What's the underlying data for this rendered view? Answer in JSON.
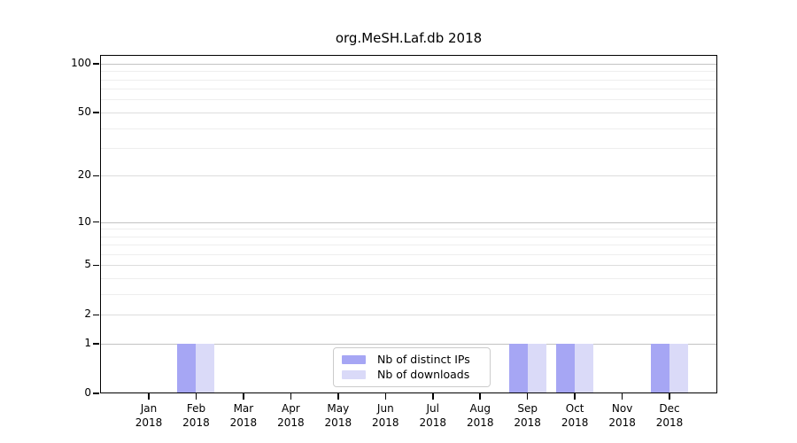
{
  "page": {
    "background": "#ffffff"
  },
  "chart_data": {
    "type": "bar",
    "title": "org.MeSH.Laf.db 2018",
    "year_label": "2018",
    "categories": [
      "Jan",
      "Feb",
      "Mar",
      "Apr",
      "May",
      "Jun",
      "Jul",
      "Aug",
      "Sep",
      "Oct",
      "Nov",
      "Dec"
    ],
    "series": [
      {
        "name": "Nb of distinct IPs",
        "color": "#a6a6f4",
        "values": [
          0,
          1,
          0,
          0,
          0,
          0,
          0,
          0,
          1,
          1,
          0,
          1
        ]
      },
      {
        "name": "Nb of downloads",
        "color": "#dadaf8",
        "values": [
          0,
          1,
          0,
          0,
          0,
          0,
          0,
          0,
          1,
          1,
          0,
          1
        ]
      }
    ],
    "xlabel": "",
    "ylabel": "",
    "scale": "log1p",
    "ylim": [
      0,
      120
    ],
    "y_ticks": [
      0,
      1,
      2,
      5,
      10,
      20,
      50,
      100
    ],
    "gridlines": {
      "major": [
        1,
        10,
        100
      ],
      "medium": [
        2,
        5,
        20,
        50
      ],
      "minor": [
        3,
        4,
        6,
        7,
        8,
        9,
        30,
        40,
        60,
        70,
        80,
        90
      ]
    },
    "grid": true,
    "legend_position": "lower center",
    "colors": {
      "major_grid": "#c3c3c3",
      "medium_grid": "#dddddd",
      "minor_grid": "#eeeeee",
      "axis": "#000000",
      "text": "#000000"
    }
  }
}
